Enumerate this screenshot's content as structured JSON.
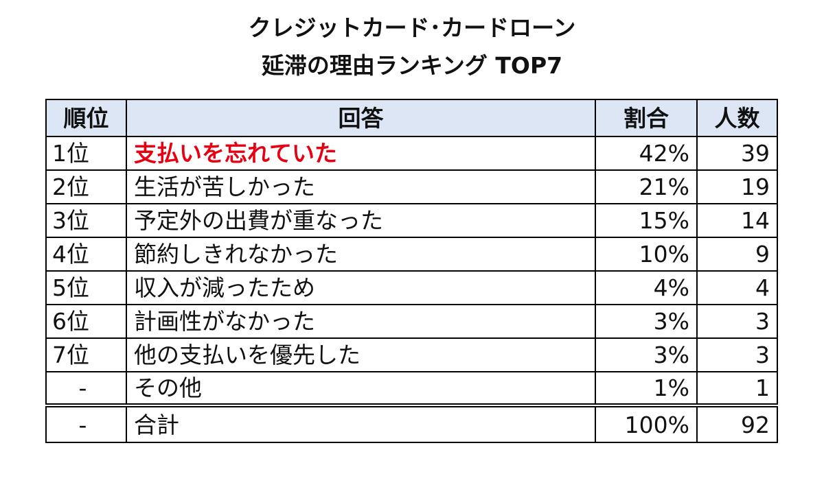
{
  "chart_data": {
    "type": "table",
    "title_line1": "クレジットカード･カードローン",
    "title_line2": "延滞の理由ランキング TOP7",
    "columns": [
      "順位",
      "回答",
      "割合",
      "人数"
    ],
    "rows": [
      {
        "rank": "1位",
        "answer": "支払いを忘れていた",
        "ratio": "42%",
        "count": "39",
        "highlight": true
      },
      {
        "rank": "2位",
        "answer": "生活が苦しかった",
        "ratio": "21%",
        "count": "19"
      },
      {
        "rank": "3位",
        "answer": "予定外の出費が重なった",
        "ratio": "15%",
        "count": "14"
      },
      {
        "rank": "4位",
        "answer": "節約しきれなかった",
        "ratio": "10%",
        "count": "9"
      },
      {
        "rank": "5位",
        "answer": "収入が減ったため",
        "ratio": "4%",
        "count": "4"
      },
      {
        "rank": "6位",
        "answer": "計画性がなかった",
        "ratio": "3%",
        "count": "3"
      },
      {
        "rank": "7位",
        "answer": "他の支払いを優先した",
        "ratio": "3%",
        "count": "3"
      },
      {
        "rank": "-",
        "answer": "その他",
        "ratio": "1%",
        "count": "1"
      }
    ],
    "total": {
      "rank": "-",
      "answer": "合計",
      "ratio": "100%",
      "count": "92"
    },
    "header_bg": "#dce6f5",
    "highlight_color": "#e60012"
  }
}
